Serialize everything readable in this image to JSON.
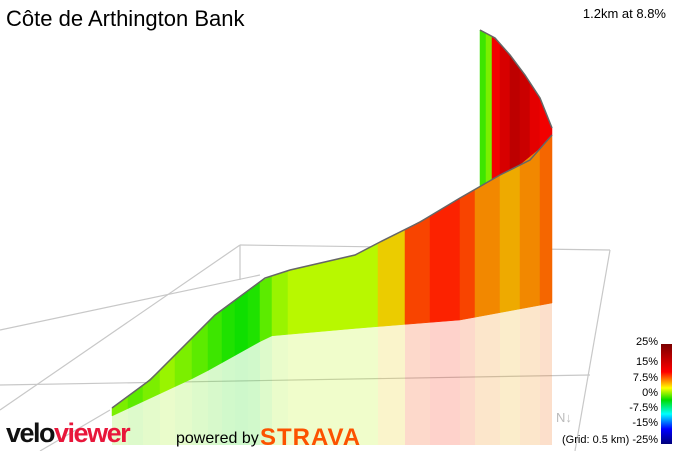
{
  "title": "Côte de Arthington Bank",
  "summary": "1.2km at 8.8%",
  "legend": {
    "labels": [
      "25%",
      "15%",
      "7.5%",
      "0%",
      "-7.5%",
      "-15%",
      "-25%"
    ],
    "grid_note": "(Grid: 0.5 km)",
    "colors": [
      "#7a0000",
      "#ff0000",
      "#ffff00",
      "#00dd00",
      "#00ffff",
      "#0000ff",
      "#00007a"
    ]
  },
  "branding": {
    "logo_a": "velo",
    "logo_b": "viewer",
    "powered_by": "powered by",
    "strava": "STRAVA"
  },
  "chart_data": {
    "type": "area",
    "title": "Côte de Arthington Bank",
    "distance_km": 1.2,
    "average_gradient_pct": 8.8,
    "grid_km": 0.5,
    "color_scale_pct": [
      -25,
      25
    ],
    "segment_gradients_pct": [
      4,
      3,
      4,
      5,
      4,
      3,
      2,
      1,
      0.5,
      1,
      3,
      5,
      6,
      6,
      9,
      13,
      14,
      13,
      11,
      10,
      11,
      12
    ]
  }
}
